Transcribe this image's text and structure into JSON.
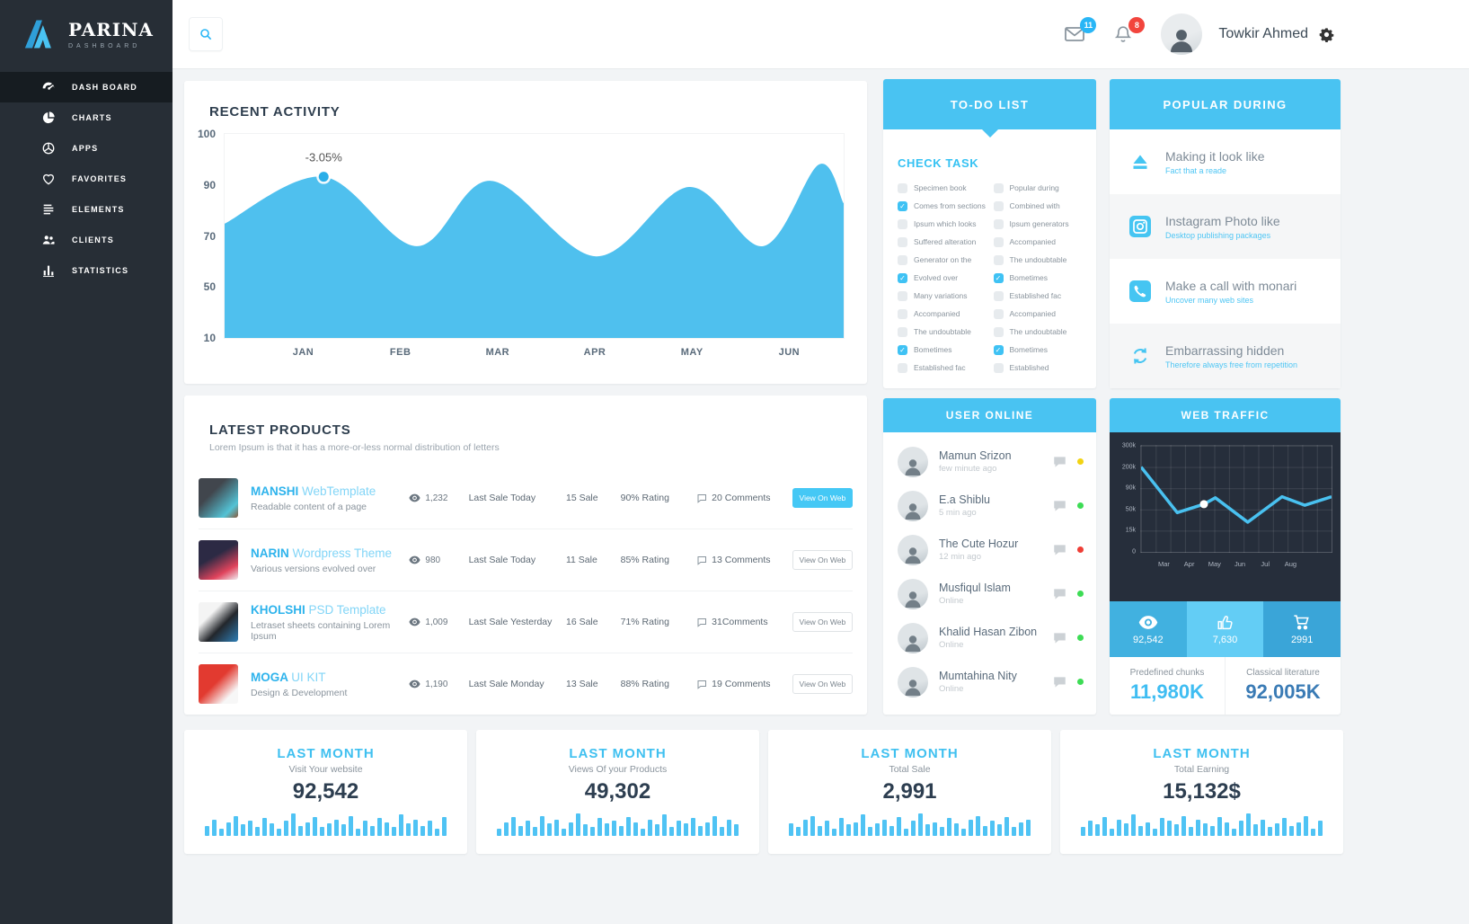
{
  "brand": {
    "name": "PARINA",
    "tagline": "DASHBOARD"
  },
  "sidebar": {
    "items": [
      {
        "label": "DASH BOARD",
        "icon": "gauge-icon",
        "active": true
      },
      {
        "label": "CHARTS",
        "icon": "pie-chart-icon",
        "active": false
      },
      {
        "label": "APPS",
        "icon": "apps-icon",
        "active": false
      },
      {
        "label": "FAVORITES",
        "icon": "heart-icon",
        "active": false
      },
      {
        "label": "ELEMENTS",
        "icon": "list-icon",
        "active": false
      },
      {
        "label": "CLIENTS",
        "icon": "users-icon",
        "active": false
      },
      {
        "label": "STATISTICS",
        "icon": "bar-chart-icon",
        "active": false
      }
    ]
  },
  "topbar": {
    "user_name": "Towkir Ahmed",
    "mail_badge": "11",
    "notification_badge": "8"
  },
  "recent_activity": {
    "title": "RECENT ACTIVITY",
    "tooltip": "-3.05%"
  },
  "todo": {
    "header": "TO-DO LIST",
    "subheader": "CHECK TASK",
    "left": [
      {
        "label": "Specimen book",
        "checked": false
      },
      {
        "label": "Comes from sections",
        "checked": true
      },
      {
        "label": "Ipsum which looks",
        "checked": false
      },
      {
        "label": "Suffered alteration",
        "checked": false
      },
      {
        "label": "Generator on the",
        "checked": false
      },
      {
        "label": "Evolved over",
        "checked": true
      },
      {
        "label": "Many variations",
        "checked": false
      },
      {
        "label": "Accompanied",
        "checked": false
      },
      {
        "label": "The undoubtable",
        "checked": false
      },
      {
        "label": "Bometimes",
        "checked": true
      },
      {
        "label": "Established fac",
        "checked": false
      }
    ],
    "right": [
      {
        "label": "Popular during",
        "checked": false
      },
      {
        "label": "Combined with",
        "checked": false
      },
      {
        "label": "Ipsum generators",
        "checked": false
      },
      {
        "label": "Accompanied",
        "checked": false
      },
      {
        "label": "The undoubtable",
        "checked": false
      },
      {
        "label": "Bometimes",
        "checked": true
      },
      {
        "label": "Established fac",
        "checked": false
      },
      {
        "label": "Accompanied",
        "checked": false
      },
      {
        "label": "The undoubtable",
        "checked": false
      },
      {
        "label": "Bometimes",
        "checked": true
      },
      {
        "label": "Established",
        "checked": false
      }
    ]
  },
  "popular": {
    "header": "POPULAR DURING",
    "items": [
      {
        "icon": "eject-icon",
        "title": "Making it look like",
        "subtitle": "Fact that a reade"
      },
      {
        "icon": "instagram-icon",
        "title": "Instagram Photo like",
        "subtitle": "Desktop publishing packages"
      },
      {
        "icon": "phone-icon",
        "title": "Make a call with monari",
        "subtitle": "Uncover many web sites"
      },
      {
        "icon": "refresh-icon",
        "title": "Embarrassing hidden",
        "subtitle": "Therefore always free from repetition"
      }
    ]
  },
  "products": {
    "title": "LATEST PRODUCTS",
    "subtitle": "Lorem Ipsum is that it has a more-or-less normal distribution of letters",
    "rows": [
      {
        "name": "MANSHI",
        "name_suffix": "WebTemplate",
        "desc": "Readable content of a page",
        "views": "1,232",
        "last_sale": "Last Sale Today",
        "sales": "15 Sale",
        "rating": "90%  Rating",
        "comments": "20 Comments",
        "button": "View On Web",
        "button_style": "filled",
        "thumb": "manshi"
      },
      {
        "name": "NARIN",
        "name_suffix": "Wordpress Theme",
        "desc": "Various versions evolved over",
        "views": "980",
        "last_sale": "Last Sale Today",
        "sales": "11 Sale",
        "rating": "85%  Rating",
        "comments": "13 Comments",
        "button": "View On Web",
        "button_style": "ghost",
        "thumb": "narin"
      },
      {
        "name": "KHOLSHI",
        "name_suffix": "PSD Template",
        "desc": "Letraset sheets containing Lorem Ipsum",
        "views": "1,009",
        "last_sale": "Last Sale Yesterday",
        "sales": "16 Sale",
        "rating": "71%  Rating",
        "comments": "31Comments",
        "button": "View On Web",
        "button_style": "ghost",
        "thumb": "kholshi"
      },
      {
        "name": "MOGA",
        "name_suffix": "UI KIT",
        "desc": "Design & Development",
        "views": "1,190",
        "last_sale": "Last Sale Monday",
        "sales": "13 Sale",
        "rating": "88%  Rating",
        "comments": "19 Comments",
        "button": "View On Web",
        "button_style": "ghost",
        "thumb": "moga"
      }
    ]
  },
  "users_online": {
    "header": "USER ONLINE",
    "rows": [
      {
        "name": "Mamun Srizon",
        "time": "few minute ago",
        "status_color": "#f2d313"
      },
      {
        "name": "E.a Shiblu",
        "time": "5 min ago",
        "status_color": "#3ddc55"
      },
      {
        "name": "The Cute Hozur",
        "time": "12 min ago",
        "status_color": "#ef3e36"
      },
      {
        "name": "Musfiqul Islam",
        "time": "Online",
        "status_color": "#3ddc55"
      },
      {
        "name": "Khalid Hasan Zibon",
        "time": "Online",
        "status_color": "#3ddc55"
      },
      {
        "name": "Mumtahina Nity",
        "time": "Online",
        "status_color": "#3ddc55"
      }
    ]
  },
  "web_traffic": {
    "header": "WEB TRAFFIC",
    "stats": [
      {
        "icon": "eye-icon",
        "value": "92,542",
        "bg": "#41b1e0"
      },
      {
        "icon": "thumb-icon",
        "value": "7,630",
        "bg": "#63cdf5"
      },
      {
        "icon": "cart-icon",
        "value": "2991",
        "bg": "#3aa5d8"
      }
    ],
    "footer": [
      {
        "label": "Predefined chunks",
        "value": "11,980K",
        "color": "#3fbdf2"
      },
      {
        "label": "Classical literature",
        "value": "92,005K",
        "color": "#3a7bb5"
      }
    ]
  },
  "summary_cards": [
    {
      "title": "LAST MONTH",
      "subtitle": "Visit Your website",
      "value": "92,542"
    },
    {
      "title": "LAST MONTH",
      "subtitle": "Views Of your Products",
      "value": "49,302"
    },
    {
      "title": "LAST MONTH",
      "subtitle": "Total Sale",
      "value": "2,991"
    },
    {
      "title": "LAST MONTH",
      "subtitle": "Total Earning",
      "value": "15,132$"
    }
  ],
  "chart_data": [
    {
      "id": "recent_activity",
      "type": "area",
      "title": "RECENT ACTIVITY",
      "categories": [
        "JAN",
        "FEB",
        "MAR",
        "APR",
        "MAY",
        "JUN"
      ],
      "ytick_labels": [
        "100",
        "90",
        "70",
        "50",
        "10"
      ],
      "points_pct": [
        [
          0,
          44
        ],
        [
          16,
          21
        ],
        [
          31,
          55
        ],
        [
          43,
          23
        ],
        [
          60,
          60
        ],
        [
          75,
          26
        ],
        [
          87,
          55
        ],
        [
          96,
          15
        ],
        [
          100,
          34
        ]
      ],
      "marker_index": 1,
      "annotation": "-3.05%",
      "fill": "#4fc0ee",
      "note": "y axis non-linear ticks as labeled; points are [x%, y% from top] of plot area"
    },
    {
      "id": "web_traffic",
      "type": "line",
      "categories": [
        "Mar",
        "Apr",
        "May",
        "Jun",
        "Jul",
        "Aug"
      ],
      "ytick_labels": [
        "300k",
        "200k",
        "90k",
        "50k",
        "15k",
        "0"
      ],
      "points_pct": [
        [
          0,
          20
        ],
        [
          19,
          63
        ],
        [
          33,
          55
        ],
        [
          39,
          49
        ],
        [
          56,
          72
        ],
        [
          74,
          48
        ],
        [
          86,
          56
        ],
        [
          100,
          48
        ]
      ],
      "marker_index": 2,
      "stroke": "#49c1f0",
      "bg": "#262e3b",
      "grid": true
    },
    {
      "id": "spark_visits",
      "type": "bar",
      "values": [
        8,
        13,
        6,
        11,
        16,
        9,
        12,
        7,
        14,
        10,
        6,
        12,
        18,
        8,
        11,
        15,
        7,
        10,
        13,
        9,
        16,
        6,
        12,
        8,
        14,
        11,
        7,
        17,
        10,
        13,
        8,
        12,
        6,
        15
      ]
    },
    {
      "id": "spark_views",
      "type": "bar",
      "values": [
        6,
        11,
        15,
        8,
        12,
        7,
        16,
        10,
        13,
        6,
        11,
        18,
        9,
        7,
        14,
        10,
        12,
        8,
        15,
        11,
        6,
        13,
        9,
        17,
        7,
        12,
        10,
        14,
        8,
        11,
        16,
        7,
        13,
        9
      ]
    },
    {
      "id": "spark_sales",
      "type": "bar",
      "values": [
        10,
        7,
        13,
        16,
        8,
        12,
        6,
        14,
        9,
        11,
        17,
        7,
        10,
        13,
        8,
        15,
        6,
        12,
        18,
        9,
        11,
        7,
        14,
        10,
        6,
        13,
        16,
        8,
        12,
        9,
        15,
        7,
        11,
        13
      ]
    },
    {
      "id": "spark_earning",
      "type": "bar",
      "values": [
        7,
        12,
        9,
        15,
        6,
        13,
        10,
        17,
        8,
        11,
        6,
        14,
        12,
        9,
        16,
        7,
        13,
        10,
        8,
        15,
        11,
        6,
        12,
        18,
        9,
        13,
        7,
        10,
        14,
        8,
        11,
        16,
        6,
        12
      ]
    }
  ]
}
